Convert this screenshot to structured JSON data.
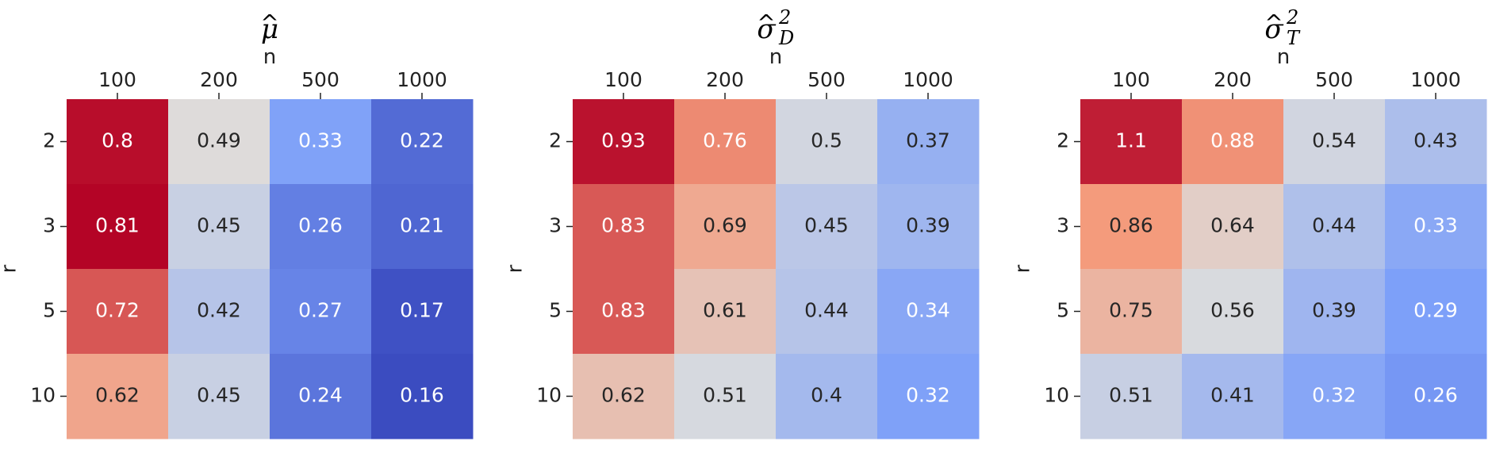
{
  "chart_data": [
    {
      "type": "heatmap",
      "title": {
        "base": "μ",
        "accent": "^",
        "sub": "",
        "sup": ""
      },
      "xlabel": "n",
      "ylabel": "r",
      "x_categories": [
        "100",
        "200",
        "500",
        "1000"
      ],
      "y_categories": [
        "2",
        "3",
        "5",
        "10"
      ],
      "values": [
        [
          0.8,
          0.49,
          0.33,
          0.22
        ],
        [
          0.81,
          0.45,
          0.26,
          0.21
        ],
        [
          0.72,
          0.42,
          0.27,
          0.17
        ],
        [
          0.62,
          0.45,
          0.24,
          0.16
        ]
      ],
      "labels": [
        [
          "0.8",
          "0.49",
          "0.33",
          "0.22"
        ],
        [
          "0.81",
          "0.45",
          "0.26",
          "0.21"
        ],
        [
          "0.72",
          "0.42",
          "0.27",
          "0.17"
        ],
        [
          "0.62",
          "0.45",
          "0.24",
          "0.16"
        ]
      ],
      "colormap": "coolwarm",
      "color_range": [
        0.16,
        0.81
      ],
      "colorbar": false
    },
    {
      "type": "heatmap",
      "title": {
        "base": "σ",
        "accent": "^",
        "sub": "D",
        "sup": "2"
      },
      "xlabel": "n",
      "ylabel": "r",
      "x_categories": [
        "100",
        "200",
        "500",
        "1000"
      ],
      "y_categories": [
        "2",
        "3",
        "5",
        "10"
      ],
      "values": [
        [
          0.93,
          0.76,
          0.5,
          0.37
        ],
        [
          0.83,
          0.69,
          0.45,
          0.39
        ],
        [
          0.83,
          0.61,
          0.44,
          0.34
        ],
        [
          0.62,
          0.51,
          0.4,
          0.32
        ]
      ],
      "labels": [
        [
          "0.93",
          "0.76",
          "0.5",
          "0.37"
        ],
        [
          "0.83",
          "0.69",
          "0.45",
          "0.39"
        ],
        [
          "0.83",
          "0.61",
          "0.44",
          "0.34"
        ],
        [
          "0.62",
          "0.51",
          "0.4",
          "0.32"
        ]
      ],
      "colormap": "coolwarm",
      "color_range": [
        0.1,
        0.95
      ],
      "colorbar": false
    },
    {
      "type": "heatmap",
      "title": {
        "base": "σ",
        "accent": "^",
        "sub": "T",
        "sup": "2"
      },
      "xlabel": "n",
      "ylabel": "r",
      "x_categories": [
        "100",
        "200",
        "500",
        "1000"
      ],
      "y_categories": [
        "2",
        "3",
        "5",
        "10"
      ],
      "values": [
        [
          1.1,
          0.88,
          0.54,
          0.43
        ],
        [
          0.86,
          0.64,
          0.44,
          0.33
        ],
        [
          0.75,
          0.56,
          0.39,
          0.29
        ],
        [
          0.51,
          0.41,
          0.32,
          0.26
        ]
      ],
      "labels": [
        [
          "1.1",
          "0.88",
          "0.54",
          "0.43"
        ],
        [
          "0.86",
          "0.64",
          "0.44",
          "0.33"
        ],
        [
          "0.75",
          "0.56",
          "0.39",
          "0.29"
        ],
        [
          "0.51",
          "0.41",
          "0.32",
          "0.26"
        ]
      ],
      "colormap": "coolwarm",
      "color_range": [
        0.0,
        1.15
      ],
      "colorbar": false
    }
  ]
}
